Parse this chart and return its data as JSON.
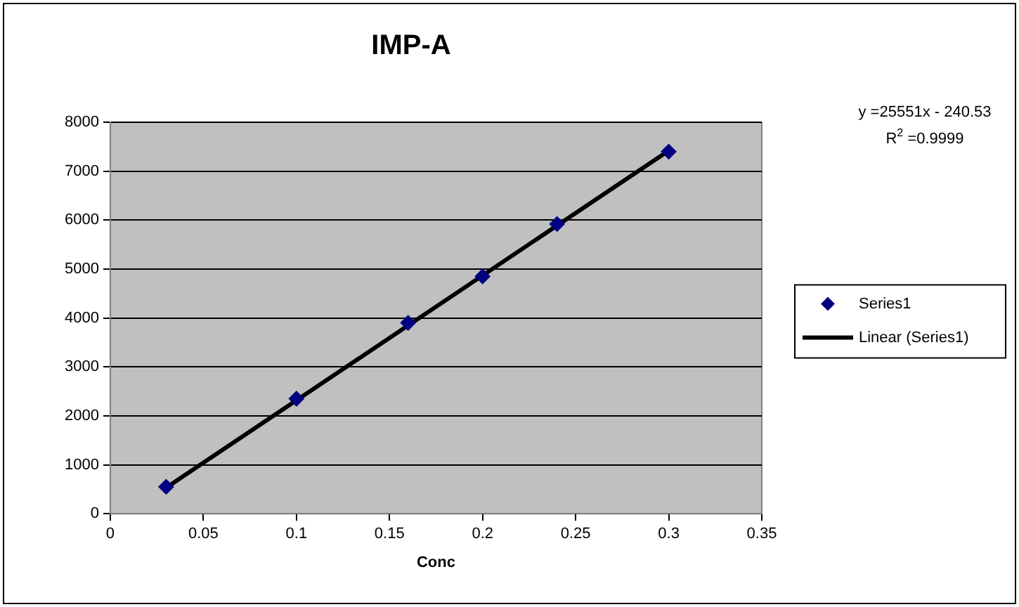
{
  "chart_data": {
    "type": "scatter",
    "title": "IMP-A",
    "xlabel": "Conc",
    "x": [
      0.03,
      0.1,
      0.16,
      0.2,
      0.24,
      0.3
    ],
    "series": [
      {
        "name": "Series1",
        "color": "#000080",
        "marker": "diamond",
        "values": [
          550,
          2350,
          3900,
          4850,
          5920,
          7400
        ]
      },
      {
        "name": "Linear (Series1)",
        "type": "line",
        "color": "#000000",
        "marker": "none",
        "x": [
          0.03,
          0.3
        ],
        "values": [
          530,
          7420
        ]
      }
    ],
    "xlim": [
      0,
      0.35
    ],
    "xticks": [
      0,
      0.05,
      0.1,
      0.15,
      0.2,
      0.25,
      0.3,
      0.35
    ],
    "ylim": [
      0,
      8000
    ],
    "yticks": [
      0,
      1000,
      2000,
      3000,
      4000,
      5000,
      6000,
      7000,
      8000
    ],
    "grid": "y",
    "legend": "right",
    "annotations": [
      "y =25551x - 240.53",
      "R$^{2}$ =0.9999"
    ]
  }
}
